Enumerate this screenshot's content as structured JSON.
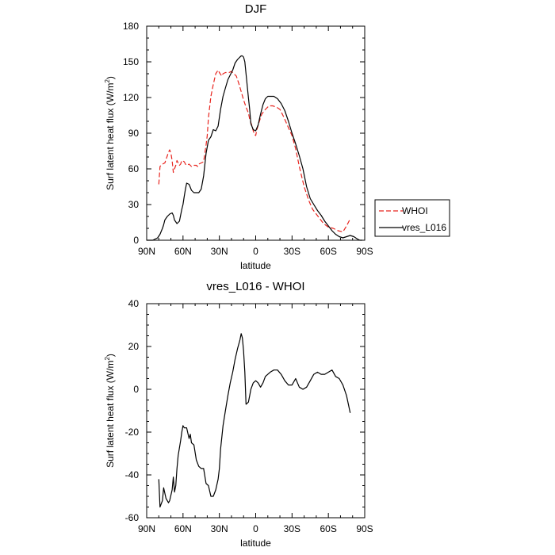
{
  "chart_data": [
    {
      "type": "line",
      "title": "DJF",
      "xlabel": "latitude",
      "ylabel": "Surf latent heat flux (W/m",
      "ylabel_sup": "2",
      "ylabel_close": ")",
      "xlim": [
        90,
        -90
      ],
      "ylim": [
        0,
        180
      ],
      "xticks": [
        90,
        60,
        30,
        0,
        -30,
        -60,
        -90
      ],
      "xtick_labels": [
        "90N",
        "60N",
        "30N",
        "0",
        "30S",
        "60S",
        "90S"
      ],
      "yticks": [
        0,
        30,
        60,
        90,
        120,
        150,
        180
      ],
      "ytick_labels": [
        "0",
        "30",
        "60",
        "90",
        "120",
        "150",
        "180"
      ],
      "legend": [
        "WHOI",
        "vres_L016"
      ],
      "series": [
        {
          "name": "WHOI",
          "color": "#e8251f",
          "dash": "dashed",
          "x": [
            80,
            79,
            77,
            75,
            73,
            72,
            71,
            70,
            69,
            68,
            67,
            66,
            65,
            63,
            62,
            61,
            59,
            58,
            57,
            55,
            53,
            51,
            49,
            48,
            47,
            45,
            43,
            41,
            40,
            39,
            37,
            35,
            33,
            31,
            30,
            28,
            27,
            25,
            22,
            20,
            18,
            16,
            14,
            12,
            10,
            8,
            6,
            5,
            3,
            2,
            1,
            0,
            -1,
            -3,
            -5,
            -8,
            -11,
            -14,
            -17,
            -20,
            -23,
            -26,
            -30,
            -33,
            -36,
            -40,
            -44,
            -47,
            -50,
            -53,
            -56,
            -60,
            -64,
            -68,
            -72,
            -75,
            -78
          ],
          "y": [
            47,
            62,
            64,
            65,
            71,
            74,
            76,
            73,
            67,
            57,
            60,
            63,
            67,
            63,
            64,
            67,
            66,
            64,
            63,
            64,
            62,
            63,
            63,
            62,
            64,
            65,
            66,
            80,
            88,
            103,
            121,
            131,
            140,
            143,
            141,
            138,
            140,
            141,
            141,
            142,
            140,
            138,
            132,
            125,
            118,
            112,
            107,
            102,
            96,
            92,
            89,
            88,
            93,
            100,
            106,
            110,
            113,
            113,
            112,
            110,
            104,
            97,
            88,
            77,
            62,
            45,
            33,
            26,
            22,
            18,
            14,
            11,
            10,
            8,
            7,
            12,
            18
          ]
        },
        {
          "name": "vres_L016",
          "color": "#000000",
          "dash": "solid",
          "x": [
            90,
            88,
            85,
            83,
            81,
            79,
            77,
            76,
            75,
            73,
            71,
            69,
            68,
            67,
            65,
            63,
            61,
            60,
            59,
            58,
            57,
            55,
            53,
            51,
            49,
            47,
            45,
            43,
            41,
            39,
            37,
            35,
            33,
            31,
            29,
            27,
            25,
            23,
            21,
            19,
            17,
            15,
            13,
            12,
            11,
            10,
            9,
            8,
            6,
            5,
            4,
            2,
            0,
            -2,
            -4,
            -6,
            -8,
            -10,
            -12,
            -15,
            -18,
            -21,
            -24,
            -27,
            -30,
            -33,
            -36,
            -39,
            -42,
            -45,
            -48,
            -51,
            -54,
            -57,
            -60,
            -63,
            -66,
            -69,
            -72,
            -75,
            -78,
            -81,
            -84,
            -86,
            -88
          ],
          "y": [
            0,
            0,
            0,
            1,
            2,
            5,
            10,
            13,
            17,
            20,
            22,
            23,
            21,
            17,
            14,
            16,
            26,
            30,
            37,
            43,
            48,
            47,
            42,
            40,
            40,
            40,
            43,
            54,
            73,
            84,
            87,
            93,
            92,
            96,
            110,
            121,
            128,
            135,
            139,
            143,
            149,
            152,
            154,
            155,
            155,
            154,
            150,
            140,
            120,
            110,
            98,
            93,
            92,
            97,
            106,
            114,
            119,
            121,
            121,
            121,
            119,
            115,
            109,
            100,
            90,
            81,
            71,
            60,
            45,
            35,
            30,
            25,
            21,
            16,
            12,
            8,
            5,
            3,
            2,
            3,
            4,
            3,
            1,
            0,
            0
          ]
        }
      ]
    },
    {
      "type": "line",
      "title": "vres_L016 - WHOI",
      "xlabel": "latitude",
      "ylabel": "Surf latent heat flux (W/m",
      "ylabel_sup": "2",
      "ylabel_close": ")",
      "xlim": [
        90,
        -90
      ],
      "ylim": [
        -60,
        40
      ],
      "xticks": [
        90,
        60,
        30,
        0,
        -30,
        -60,
        -90
      ],
      "xtick_labels": [
        "90N",
        "60N",
        "30N",
        "0",
        "30S",
        "60S",
        "90S"
      ],
      "yticks": [
        -60,
        -40,
        -20,
        0,
        20,
        40
      ],
      "ytick_labels": [
        "-60",
        "-40",
        "-20",
        "0",
        "20",
        "40"
      ],
      "series": [
        {
          "name": "vres_L016 - WHOI",
          "color": "#000000",
          "dash": "solid",
          "x": [
            80,
            79,
            77,
            76,
            74,
            72,
            71,
            69,
            68,
            67,
            66,
            65,
            64,
            62,
            61,
            60,
            59,
            57,
            55,
            54,
            53,
            51,
            49,
            47,
            45,
            43,
            41,
            39,
            37,
            35,
            33,
            31,
            30,
            29,
            27,
            25,
            23,
            21,
            19,
            17,
            15,
            13,
            12,
            11,
            10,
            9,
            8,
            6,
            5,
            4,
            2,
            0,
            -2,
            -4,
            -6,
            -8,
            -10,
            -12,
            -15,
            -18,
            -21,
            -24,
            -27,
            -30,
            -33,
            -36,
            -39,
            -42,
            -45,
            -48,
            -51,
            -54,
            -57,
            -60,
            -63,
            -66,
            -69,
            -72,
            -75,
            -78
          ],
          "y": [
            -42,
            -55,
            -52,
            -46,
            -51,
            -53,
            -52,
            -47,
            -41,
            -48,
            -45,
            -37,
            -31,
            -24,
            -20,
            -17,
            -18,
            -18,
            -23,
            -21,
            -25,
            -26,
            -33,
            -36,
            -37,
            -37,
            -44,
            -45,
            -50,
            -50,
            -47,
            -42,
            -37,
            -28,
            -17,
            -10,
            -3,
            3,
            8,
            14,
            19,
            23,
            26,
            24,
            18,
            8,
            -7,
            -6,
            -3,
            0,
            3,
            4,
            3,
            1,
            3,
            6,
            7,
            8,
            9,
            9,
            7,
            4,
            2,
            2,
            5,
            1,
            0,
            1,
            4,
            7,
            8,
            7,
            7,
            8,
            9,
            6,
            5,
            2,
            -3,
            -11
          ]
        }
      ]
    }
  ]
}
